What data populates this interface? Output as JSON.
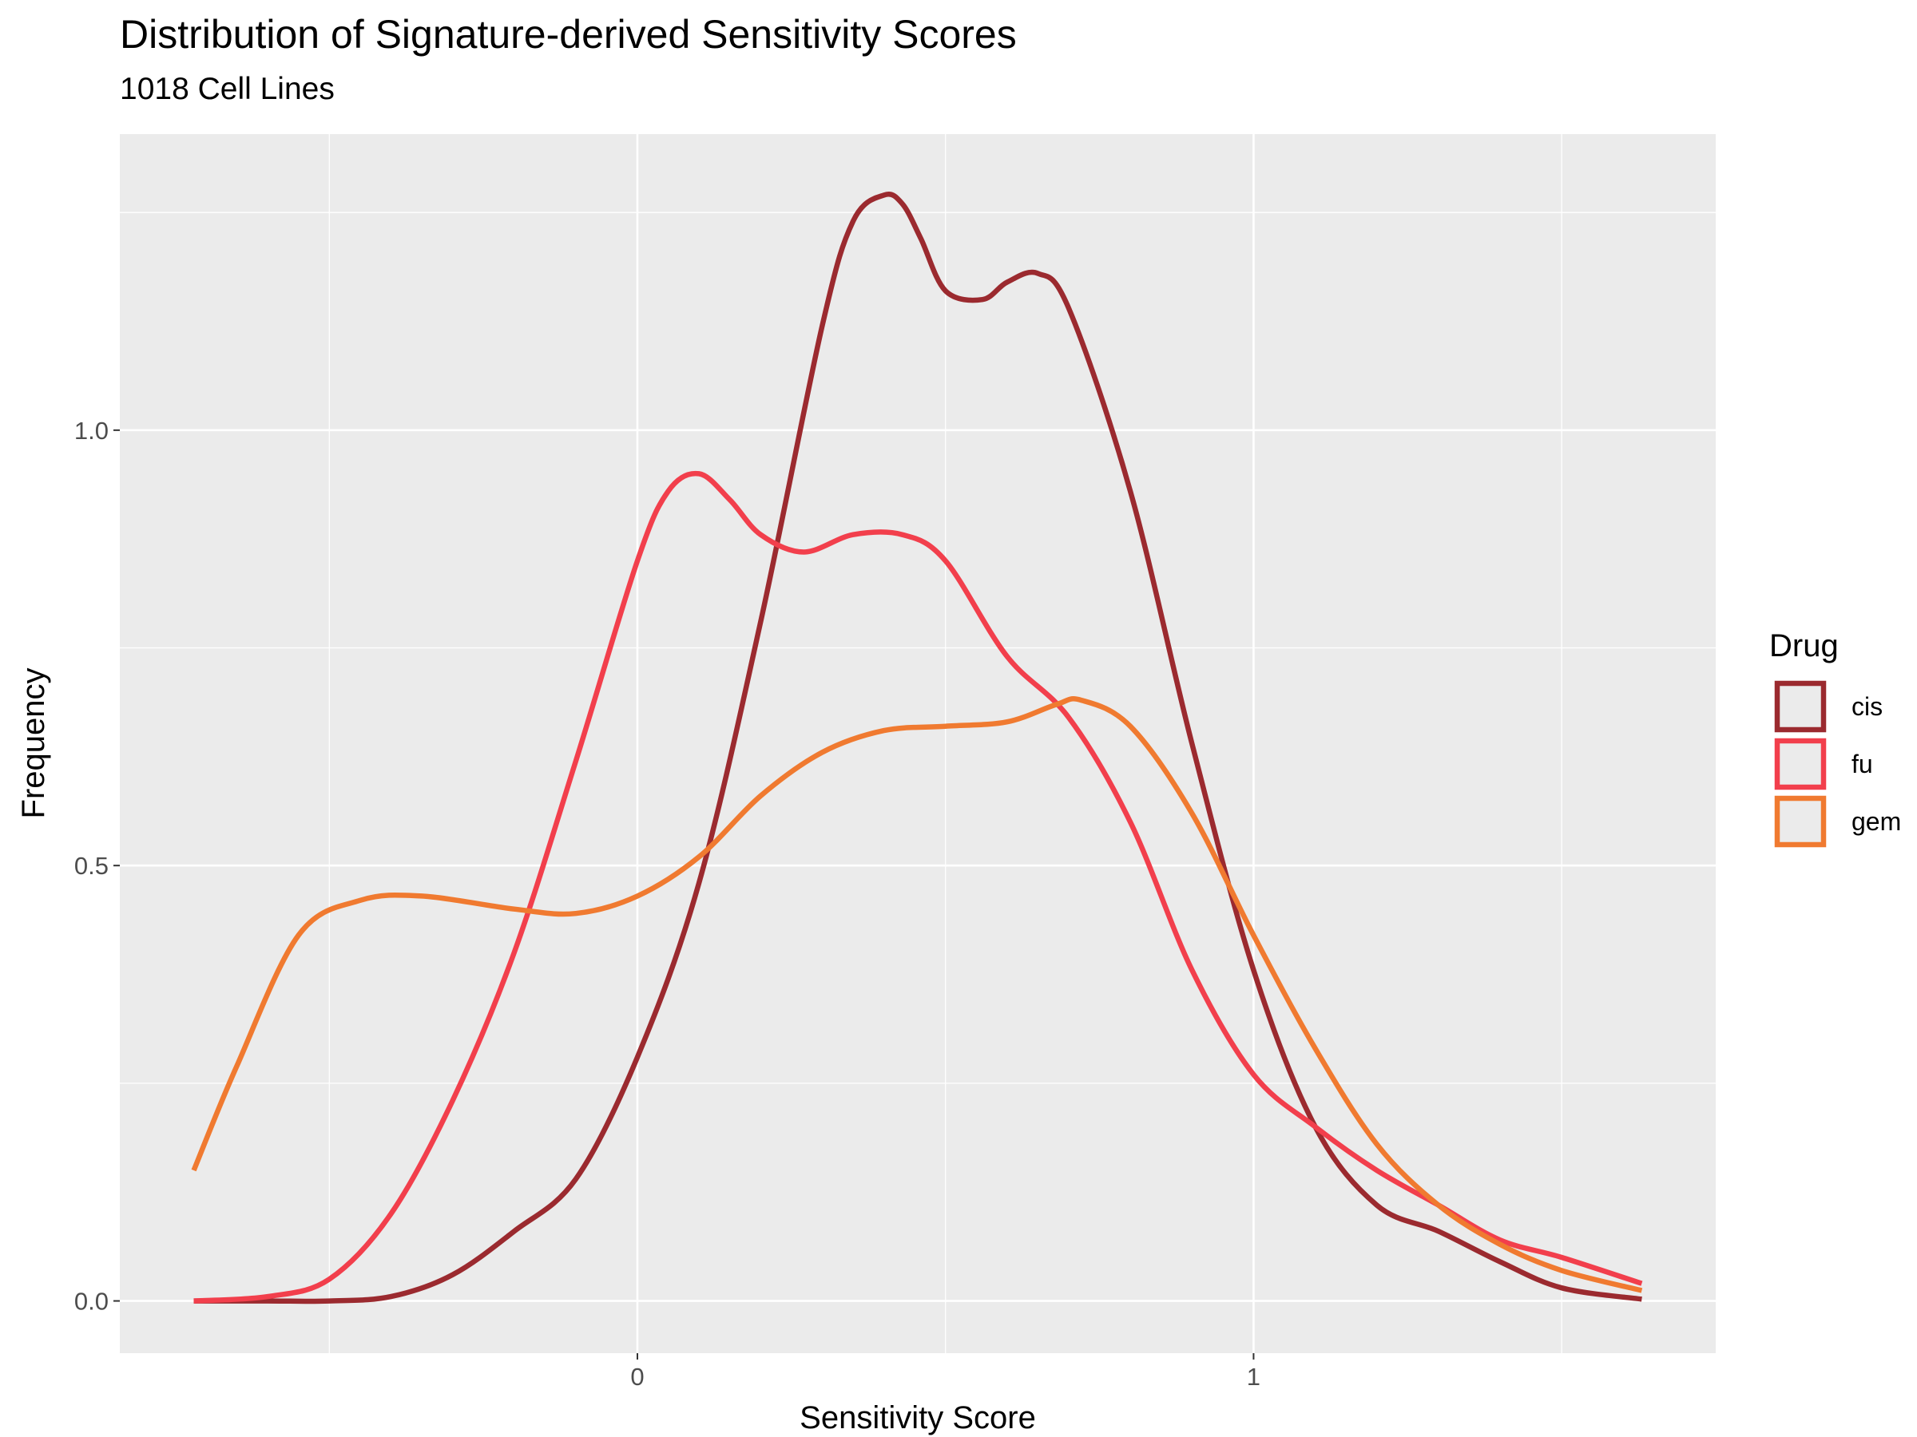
{
  "chart_data": {
    "type": "line",
    "title": "Distribution of Signature-derived Sensitivity Scores",
    "subtitle": "1018 Cell Lines",
    "xlabel": "Sensitivity Score",
    "ylabel": "Frequency",
    "xlim": [
      -0.84,
      1.75
    ],
    "ylim": [
      -0.06,
      1.34
    ],
    "x_ticks": [
      0,
      1
    ],
    "x_tick_labels": [
      "0",
      "1"
    ],
    "y_ticks": [
      0.0,
      0.5,
      1.0
    ],
    "y_tick_labels": [
      "0.0",
      "0.5",
      "1.0"
    ],
    "grid": true,
    "legend": {
      "title": "Drug",
      "position": "right"
    },
    "series": [
      {
        "name": "cis",
        "color": "#9b2a2f",
        "x": [
          -0.72,
          -0.6,
          -0.5,
          -0.4,
          -0.3,
          -0.2,
          -0.1,
          0.0,
          0.1,
          0.2,
          0.3,
          0.35,
          0.4,
          0.43,
          0.46,
          0.5,
          0.56,
          0.6,
          0.65,
          0.7,
          0.8,
          0.9,
          1.0,
          1.1,
          1.2,
          1.3,
          1.4,
          1.5,
          1.63
        ],
        "values": [
          0.0,
          0.0,
          0.0,
          0.005,
          0.03,
          0.08,
          0.14,
          0.28,
          0.48,
          0.78,
          1.12,
          1.24,
          1.27,
          1.26,
          1.22,
          1.16,
          1.15,
          1.17,
          1.18,
          1.14,
          0.93,
          0.64,
          0.38,
          0.2,
          0.11,
          0.08,
          0.045,
          0.015,
          0.002
        ]
      },
      {
        "name": "fu",
        "color": "#f23f4c",
        "x": [
          -0.72,
          -0.6,
          -0.5,
          -0.4,
          -0.3,
          -0.2,
          -0.1,
          0.0,
          0.05,
          0.1,
          0.15,
          0.2,
          0.27,
          0.35,
          0.43,
          0.5,
          0.6,
          0.7,
          0.8,
          0.9,
          1.0,
          1.1,
          1.2,
          1.3,
          1.4,
          1.5,
          1.63
        ],
        "values": [
          0.0,
          0.005,
          0.025,
          0.1,
          0.23,
          0.4,
          0.62,
          0.85,
          0.93,
          0.95,
          0.92,
          0.88,
          0.86,
          0.88,
          0.88,
          0.85,
          0.74,
          0.67,
          0.55,
          0.38,
          0.26,
          0.2,
          0.15,
          0.11,
          0.07,
          0.05,
          0.02
        ]
      },
      {
        "name": "gem",
        "color": "#f07a30",
        "x": [
          -0.72,
          -0.65,
          -0.55,
          -0.45,
          -0.35,
          -0.2,
          -0.1,
          0.0,
          0.1,
          0.2,
          0.3,
          0.4,
          0.5,
          0.6,
          0.68,
          0.72,
          0.8,
          0.9,
          1.0,
          1.1,
          1.2,
          1.3,
          1.4,
          1.5,
          1.63
        ],
        "values": [
          0.15,
          0.27,
          0.42,
          0.46,
          0.465,
          0.45,
          0.445,
          0.465,
          0.51,
          0.58,
          0.63,
          0.655,
          0.66,
          0.665,
          0.685,
          0.69,
          0.66,
          0.56,
          0.42,
          0.29,
          0.18,
          0.11,
          0.065,
          0.035,
          0.012
        ]
      }
    ]
  }
}
